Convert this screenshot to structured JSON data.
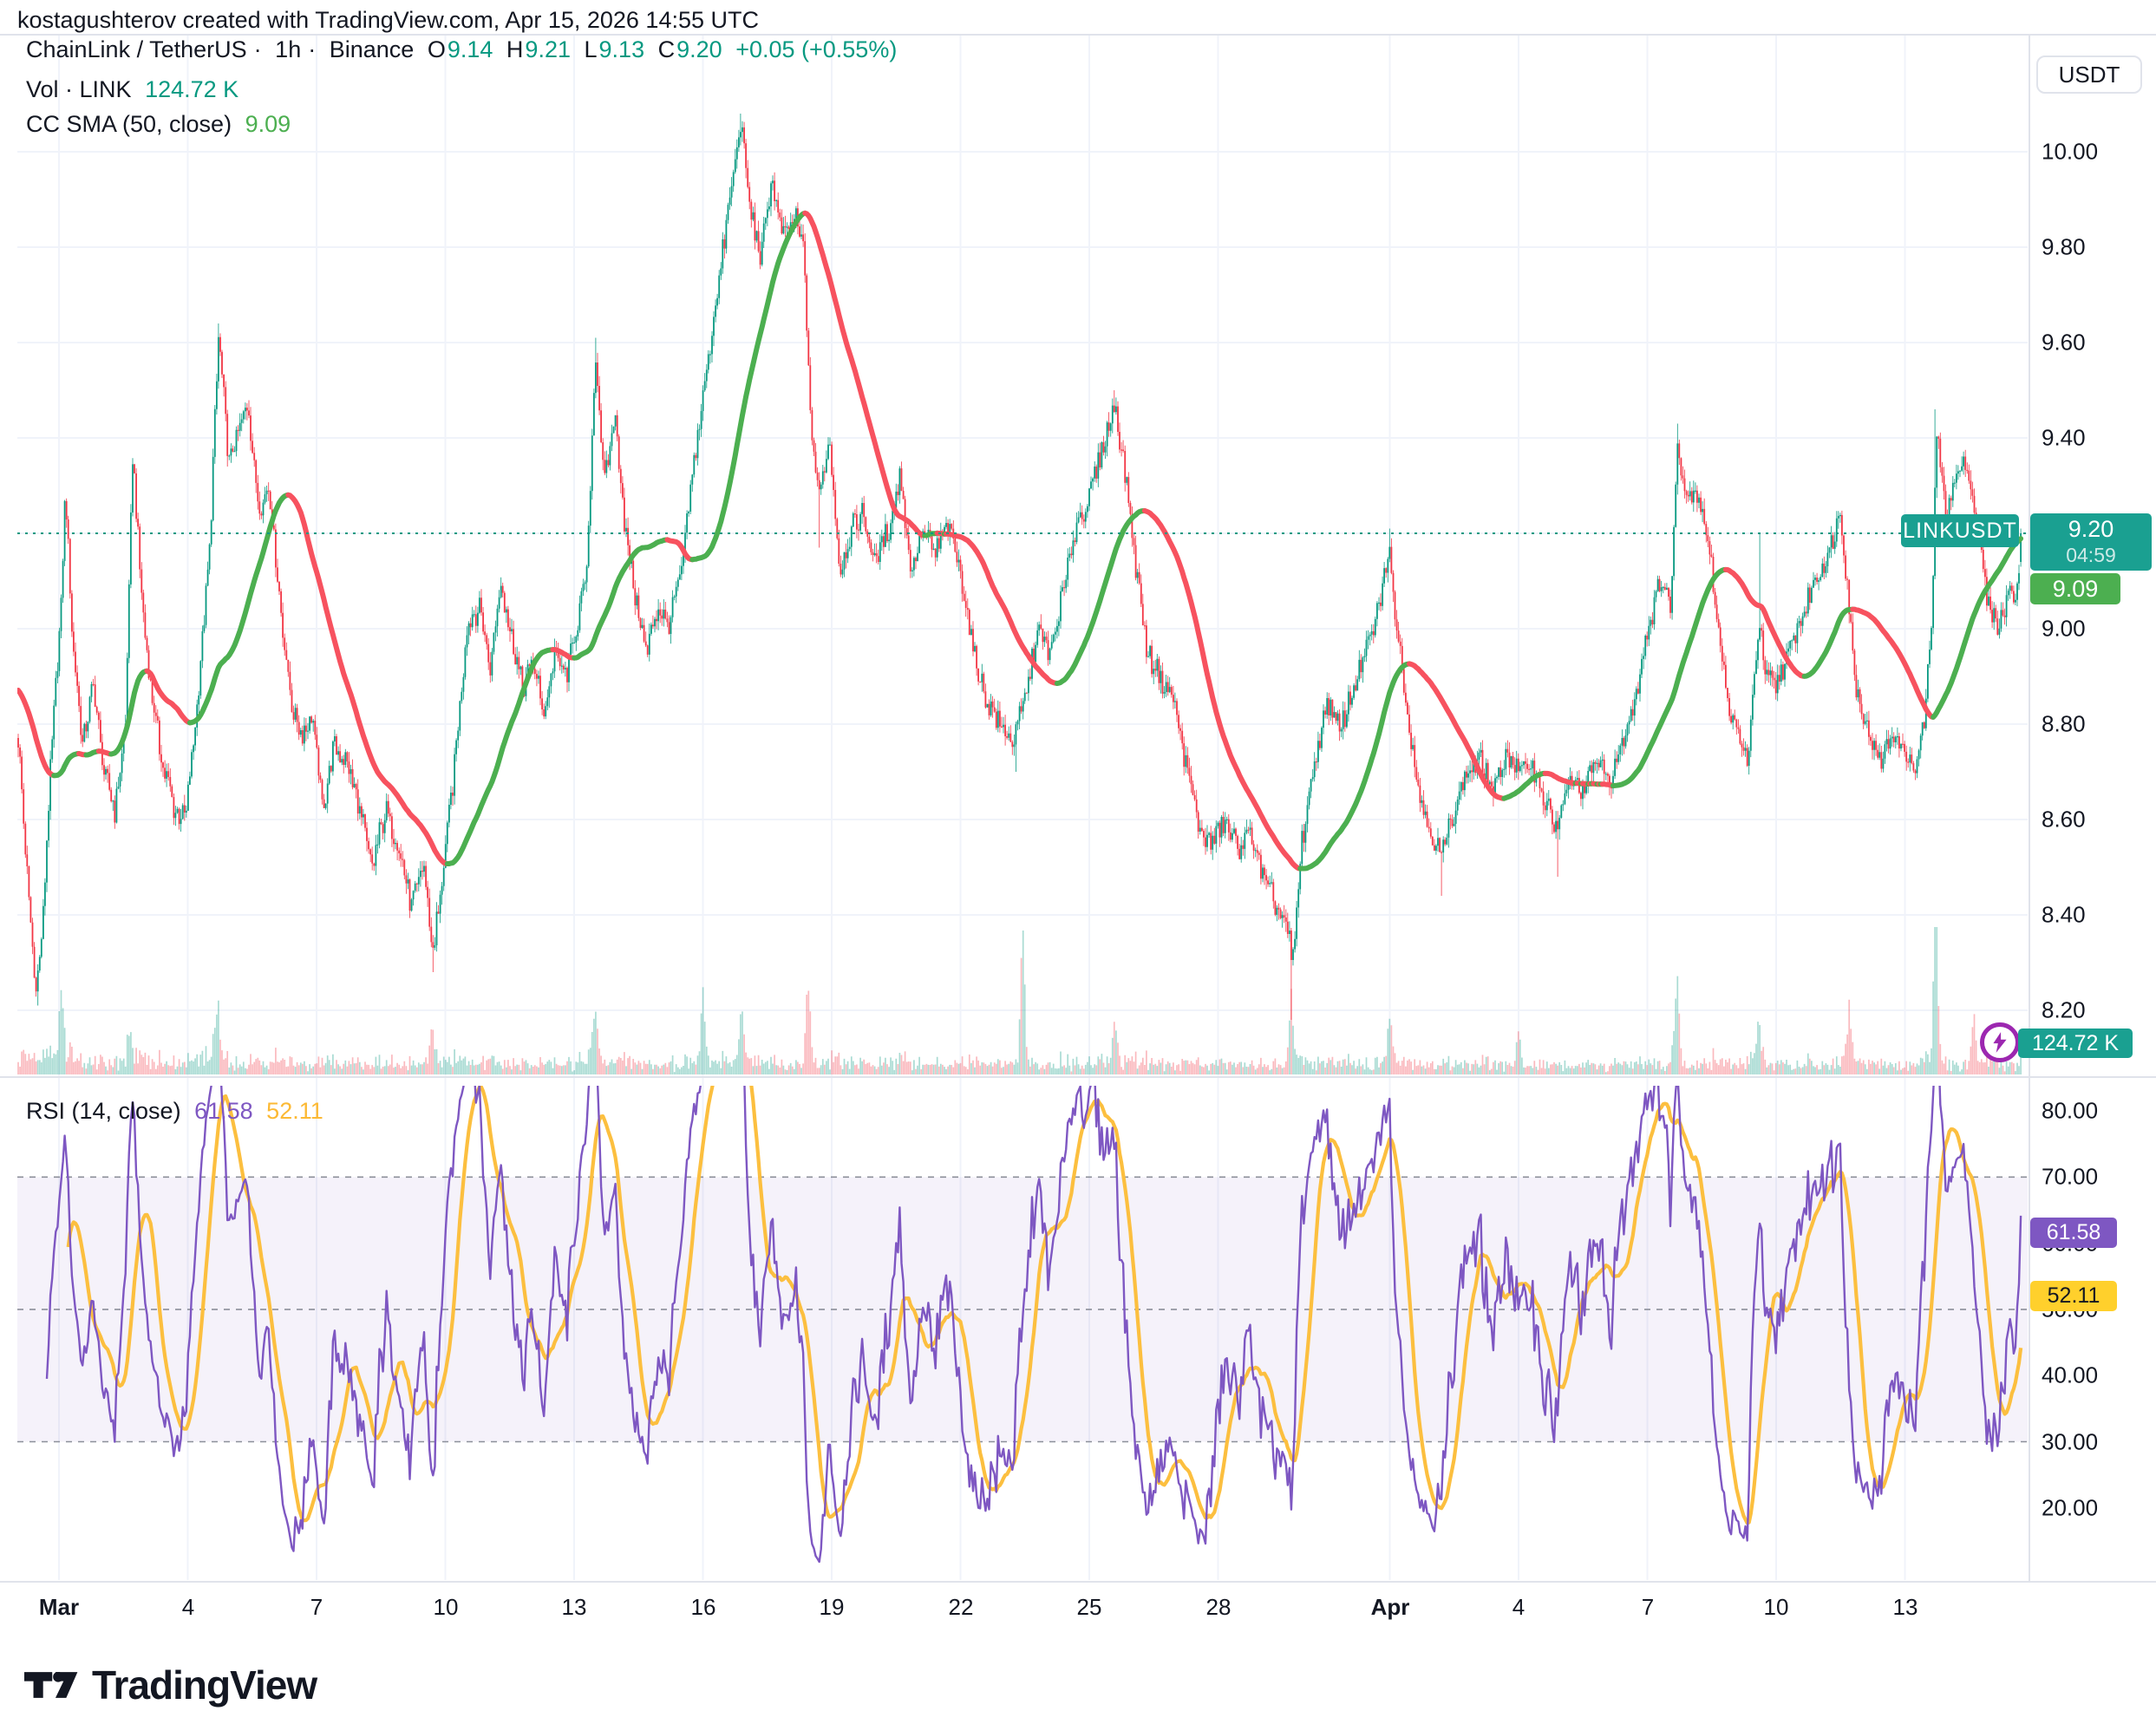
{
  "attribution": "kostagushterov created with TradingView.com, Apr 15, 2026 14:55 UTC",
  "header": {
    "symbol": "ChainLink / TetherUS",
    "sep": "·",
    "interval": "1h",
    "exchange": "Binance",
    "ohlc": {
      "o_label": "O",
      "o": "9.14",
      "h_label": "H",
      "h": "9.21",
      "l_label": "L",
      "l": "9.13",
      "c_label": "C",
      "c": "9.20",
      "change": "+0.05 (+0.55%)"
    },
    "vol_label": "Vol · LINK",
    "vol_value": "124.72 K",
    "sma_label": "CC SMA (50, close)",
    "sma_value": "9.09"
  },
  "price_axis": {
    "currency_button": "USDT",
    "ticks": [
      10.0,
      9.8,
      9.6,
      9.4,
      9.2,
      9.0,
      8.8,
      8.6,
      8.4,
      8.2
    ],
    "symbol_label": "LINKUSDT",
    "last_price_badge": {
      "price": "9.20",
      "countdown": "04:59"
    },
    "sma_badge": "9.09",
    "volume_badge": "124.72 K"
  },
  "rsi_panel": {
    "legend_title": "RSI (14, close)",
    "rsi_value": "61.58",
    "ma_value": "52.11",
    "axis_ticks": [
      80.0,
      70.0,
      60.0,
      50.0,
      40.0,
      30.0,
      20.0
    ],
    "band_upper": 70,
    "band_middle": 50,
    "band_lower": 30
  },
  "time_axis": {
    "ticks": [
      {
        "label": "Mar",
        "day": 0,
        "major": true
      },
      {
        "label": "4",
        "day": 3,
        "major": false
      },
      {
        "label": "7",
        "day": 6,
        "major": false
      },
      {
        "label": "10",
        "day": 9,
        "major": false
      },
      {
        "label": "13",
        "day": 12,
        "major": false
      },
      {
        "label": "16",
        "day": 15,
        "major": false
      },
      {
        "label": "19",
        "day": 18,
        "major": false
      },
      {
        "label": "22",
        "day": 21,
        "major": false
      },
      {
        "label": "25",
        "day": 24,
        "major": false
      },
      {
        "label": "28",
        "day": 27,
        "major": false
      },
      {
        "label": "Apr",
        "day": 31,
        "major": true
      },
      {
        "label": "4",
        "day": 34,
        "major": false
      },
      {
        "label": "7",
        "day": 37,
        "major": false
      },
      {
        "label": "10",
        "day": 40,
        "major": false
      },
      {
        "label": "13",
        "day": 43,
        "major": false
      }
    ]
  },
  "footer": {
    "logo_text": "TradingView"
  },
  "colors": {
    "up": "#089981",
    "down": "#F23645",
    "vol_up": "rgba(8,153,129,0.35)",
    "vol_down": "rgba(242,54,69,0.35)",
    "sma_up": "#4CAF50",
    "sma_down": "#F7525F",
    "badge_teal": "#1AA091",
    "badge_green": "#4CAF50",
    "rsi_line": "#7E57C2",
    "rsi_ma_line": "#FCBF3F",
    "rsi_band_fill": "rgba(126,87,194,0.08)",
    "dashed_line": "#8C8F9A",
    "grid": "#F0F3FA",
    "separator": "#E0E3EB",
    "axis_text": "#131722",
    "last_price_dotted": "#089981",
    "flash_icon": "#9C27B0"
  },
  "chart_data": {
    "type": "candlestick",
    "symbol": "ChainLink / TetherUS",
    "ticker": "LINKUSDT",
    "interval": "1h",
    "exchange": "Binance",
    "current_bar": {
      "open": 9.14,
      "high": 9.21,
      "low": 9.13,
      "close": 9.2,
      "change": 0.05,
      "change_pct": 0.55
    },
    "current_volume": "124.72 K",
    "sma": {
      "period": 50,
      "source": "close",
      "value": 9.09
    },
    "rsi": {
      "period": 14,
      "source": "close",
      "value": 61.58,
      "ma_value": 52.11
    },
    "price_axis_range": [
      8.07,
      10.25
    ],
    "rsi_axis_range": [
      15,
      85
    ],
    "time_range": [
      "Feb 28",
      "Apr 15 14:55 UTC"
    ],
    "grid": true,
    "legend_position": "top-left",
    "price_keyframes": [
      [
        -0.97,
        8.8
      ],
      [
        -0.75,
        8.5
      ],
      [
        -0.55,
        8.24
      ],
      [
        -0.4,
        8.35
      ],
      [
        -0.2,
        8.7
      ],
      [
        0.05,
        9.05
      ],
      [
        0.15,
        9.3
      ],
      [
        0.3,
        9.0
      ],
      [
        0.55,
        8.75
      ],
      [
        0.8,
        8.88
      ],
      [
        1.05,
        8.7
      ],
      [
        1.3,
        8.62
      ],
      [
        1.55,
        8.8
      ],
      [
        1.72,
        9.37
      ],
      [
        1.9,
        9.1
      ],
      [
        2.1,
        8.9
      ],
      [
        2.4,
        8.72
      ],
      [
        2.7,
        8.62
      ],
      [
        2.95,
        8.6
      ],
      [
        3.2,
        8.82
      ],
      [
        3.5,
        9.15
      ],
      [
        3.72,
        9.62
      ],
      [
        3.95,
        9.35
      ],
      [
        4.2,
        9.42
      ],
      [
        4.4,
        9.48
      ],
      [
        4.65,
        9.25
      ],
      [
        4.9,
        9.3
      ],
      [
        5.15,
        9.05
      ],
      [
        5.4,
        8.85
      ],
      [
        5.65,
        8.78
      ],
      [
        5.9,
        8.82
      ],
      [
        6.15,
        8.62
      ],
      [
        6.4,
        8.75
      ],
      [
        6.7,
        8.72
      ],
      [
        7.0,
        8.62
      ],
      [
        7.3,
        8.5
      ],
      [
        7.6,
        8.62
      ],
      [
        7.9,
        8.55
      ],
      [
        8.2,
        8.42
      ],
      [
        8.5,
        8.5
      ],
      [
        8.7,
        8.32
      ],
      [
        8.9,
        8.45
      ],
      [
        9.2,
        8.7
      ],
      [
        9.5,
        9.0
      ],
      [
        9.8,
        9.05
      ],
      [
        10.05,
        8.92
      ],
      [
        10.3,
        9.1
      ],
      [
        10.55,
        8.98
      ],
      [
        10.8,
        8.88
      ],
      [
        11.05,
        8.93
      ],
      [
        11.3,
        8.82
      ],
      [
        11.55,
        8.95
      ],
      [
        11.8,
        8.9
      ],
      [
        12.05,
        9.0
      ],
      [
        12.3,
        9.12
      ],
      [
        12.5,
        9.58
      ],
      [
        12.7,
        9.3
      ],
      [
        12.95,
        9.45
      ],
      [
        13.2,
        9.2
      ],
      [
        13.45,
        9.05
      ],
      [
        13.7,
        8.95
      ],
      [
        13.95,
        9.05
      ],
      [
        14.2,
        9.0
      ],
      [
        14.5,
        9.12
      ],
      [
        14.8,
        9.35
      ],
      [
        15.1,
        9.55
      ],
      [
        15.4,
        9.75
      ],
      [
        15.7,
        9.95
      ],
      [
        15.88,
        10.06
      ],
      [
        16.1,
        9.88
      ],
      [
        16.35,
        9.78
      ],
      [
        16.6,
        9.94
      ],
      [
        16.85,
        9.82
      ],
      [
        17.15,
        9.86
      ],
      [
        17.35,
        9.8
      ],
      [
        17.5,
        9.45
      ],
      [
        17.7,
        9.28
      ],
      [
        17.95,
        9.4
      ],
      [
        18.2,
        9.12
      ],
      [
        18.45,
        9.2
      ],
      [
        18.7,
        9.25
      ],
      [
        19.0,
        9.14
      ],
      [
        19.3,
        9.2
      ],
      [
        19.6,
        9.32
      ],
      [
        19.85,
        9.12
      ],
      [
        20.1,
        9.2
      ],
      [
        20.4,
        9.16
      ],
      [
        20.7,
        9.22
      ],
      [
        21.0,
        9.12
      ],
      [
        21.3,
        8.95
      ],
      [
        21.6,
        8.85
      ],
      [
        21.9,
        8.8
      ],
      [
        22.2,
        8.76
      ],
      [
        22.5,
        8.85
      ],
      [
        22.8,
        9.0
      ],
      [
        23.1,
        8.95
      ],
      [
        23.4,
        9.08
      ],
      [
        23.7,
        9.22
      ],
      [
        24.0,
        9.28
      ],
      [
        24.3,
        9.38
      ],
      [
        24.6,
        9.47
      ],
      [
        24.85,
        9.32
      ],
      [
        25.1,
        9.12
      ],
      [
        25.35,
        8.95
      ],
      [
        25.65,
        8.9
      ],
      [
        25.95,
        8.85
      ],
      [
        26.25,
        8.72
      ],
      [
        26.55,
        8.58
      ],
      [
        26.85,
        8.55
      ],
      [
        27.15,
        8.6
      ],
      [
        27.45,
        8.54
      ],
      [
        27.75,
        8.58
      ],
      [
        28.05,
        8.48
      ],
      [
        28.35,
        8.42
      ],
      [
        28.65,
        8.36
      ],
      [
        28.72,
        8.28
      ],
      [
        28.95,
        8.55
      ],
      [
        29.25,
        8.72
      ],
      [
        29.55,
        8.85
      ],
      [
        29.85,
        8.78
      ],
      [
        30.15,
        8.88
      ],
      [
        30.45,
        8.95
      ],
      [
        30.75,
        9.05
      ],
      [
        30.98,
        9.16
      ],
      [
        31.2,
        8.98
      ],
      [
        31.45,
        8.8
      ],
      [
        31.7,
        8.65
      ],
      [
        31.95,
        8.58
      ],
      [
        32.2,
        8.52
      ],
      [
        32.5,
        8.62
      ],
      [
        32.8,
        8.7
      ],
      [
        33.1,
        8.72
      ],
      [
        33.4,
        8.66
      ],
      [
        33.7,
        8.74
      ],
      [
        34.0,
        8.7
      ],
      [
        34.3,
        8.72
      ],
      [
        34.6,
        8.64
      ],
      [
        34.9,
        8.58
      ],
      [
        35.2,
        8.68
      ],
      [
        35.5,
        8.66
      ],
      [
        35.8,
        8.72
      ],
      [
        36.1,
        8.68
      ],
      [
        36.4,
        8.75
      ],
      [
        36.7,
        8.85
      ],
      [
        37.0,
        9.0
      ],
      [
        37.3,
        9.1
      ],
      [
        37.55,
        9.05
      ],
      [
        37.7,
        9.4
      ],
      [
        37.9,
        9.28
      ],
      [
        38.1,
        9.3
      ],
      [
        38.35,
        9.22
      ],
      [
        38.6,
        9.05
      ],
      [
        38.85,
        8.85
      ],
      [
        39.1,
        8.78
      ],
      [
        39.35,
        8.72
      ],
      [
        39.6,
        9.02
      ],
      [
        39.75,
        8.9
      ],
      [
        40.0,
        8.88
      ],
      [
        40.3,
        8.95
      ],
      [
        40.6,
        9.02
      ],
      [
        40.9,
        9.1
      ],
      [
        41.2,
        9.15
      ],
      [
        41.5,
        9.25
      ],
      [
        41.7,
        9.05
      ],
      [
        41.85,
        8.88
      ],
      [
        42.1,
        8.8
      ],
      [
        42.4,
        8.72
      ],
      [
        42.7,
        8.78
      ],
      [
        43.0,
        8.74
      ],
      [
        43.25,
        8.7
      ],
      [
        43.45,
        8.8
      ],
      [
        43.65,
        9.05
      ],
      [
        43.72,
        9.42
      ],
      [
        43.95,
        9.25
      ],
      [
        44.2,
        9.32
      ],
      [
        44.45,
        9.35
      ],
      [
        44.7,
        9.2
      ],
      [
        44.95,
        9.05
      ],
      [
        45.2,
        9.0
      ],
      [
        45.4,
        9.08
      ],
      [
        45.55,
        9.05
      ],
      [
        45.72,
        9.2
      ]
    ],
    "wick_events": [
      {
        "day": -0.5,
        "side": "low",
        "price": 8.21
      },
      {
        "day": 3.72,
        "side": "high",
        "price": 9.64
      },
      {
        "day": 8.7,
        "side": "low",
        "price": 8.28
      },
      {
        "day": 12.5,
        "side": "high",
        "price": 9.61
      },
      {
        "day": 15.88,
        "side": "high",
        "price": 10.08
      },
      {
        "day": 17.7,
        "side": "low",
        "price": 9.17
      },
      {
        "day": 22.3,
        "side": "low",
        "price": 8.7
      },
      {
        "day": 24.6,
        "side": "high",
        "price": 9.5
      },
      {
        "day": 28.7,
        "side": "low",
        "price": 8.18
      },
      {
        "day": 31.0,
        "side": "high",
        "price": 9.21
      },
      {
        "day": 32.2,
        "side": "low",
        "price": 8.44
      },
      {
        "day": 34.9,
        "side": "low",
        "price": 8.48
      },
      {
        "day": 37.7,
        "side": "high",
        "price": 9.43
      },
      {
        "day": 39.6,
        "side": "high",
        "price": 9.2
      },
      {
        "day": 43.72,
        "side": "high",
        "price": 9.46
      }
    ],
    "volume_spikes": [
      {
        "day": 0.05,
        "h": 70
      },
      {
        "day": 3.7,
        "h": 55
      },
      {
        "day": 8.7,
        "h": 45
      },
      {
        "day": 12.5,
        "h": 48
      },
      {
        "day": 15.0,
        "h": 80
      },
      {
        "day": 15.9,
        "h": 65
      },
      {
        "day": 17.45,
        "h": 70
      },
      {
        "day": 22.45,
        "h": 160
      },
      {
        "day": 24.6,
        "h": 50
      },
      {
        "day": 28.7,
        "h": 75
      },
      {
        "day": 31.0,
        "h": 55
      },
      {
        "day": 34.0,
        "h": 40
      },
      {
        "day": 37.7,
        "h": 85
      },
      {
        "day": 39.6,
        "h": 50
      },
      {
        "day": 41.7,
        "h": 60
      },
      {
        "day": 43.72,
        "h": 165
      },
      {
        "day": 44.6,
        "h": 55
      }
    ]
  }
}
